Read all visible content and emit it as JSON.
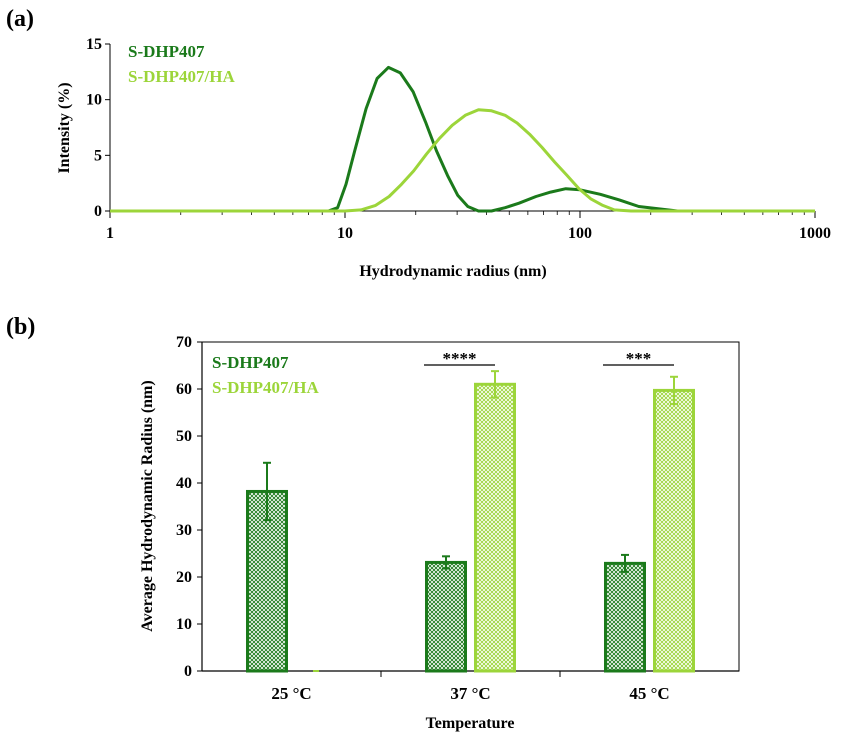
{
  "panels": {
    "a_label": "(a)",
    "b_label": "(b)"
  },
  "colors": {
    "dark": "#1b7a1b",
    "light": "#9cd53a"
  },
  "chart_data": [
    {
      "type": "line",
      "x_scale": "log",
      "title": "",
      "xlabel": "Hydrodynamic radius (nm)",
      "ylabel": "Intensity (%)",
      "xlim": [
        1,
        1000
      ],
      "ylim": [
        0,
        15
      ],
      "x_ticks": [
        1,
        10,
        100,
        1000
      ],
      "x_tick_labels": [
        "1",
        "10",
        "100",
        "1000"
      ],
      "y_ticks": [
        0,
        5,
        10,
        15
      ],
      "y_tick_labels": [
        "0",
        "5",
        "10",
        "15"
      ],
      "legend": [
        "S-DHP407",
        "S-DHP407/HA"
      ],
      "series": [
        {
          "name": "S-DHP407",
          "points": [
            [
              1,
              0
            ],
            [
              3,
              0
            ],
            [
              6,
              0
            ],
            [
              8.5,
              0
            ],
            [
              9.3,
              0.3
            ],
            [
              10.1,
              2.4
            ],
            [
              11,
              5.4
            ],
            [
              12.3,
              9.2
            ],
            [
              13.7,
              11.9
            ],
            [
              15.3,
              12.9
            ],
            [
              17.2,
              12.4
            ],
            [
              19.5,
              10.7
            ],
            [
              22,
              8
            ],
            [
              24.5,
              5.4
            ],
            [
              27.3,
              3.2
            ],
            [
              30.2,
              1.4
            ],
            [
              33.3,
              0.4
            ],
            [
              37,
              0
            ],
            [
              42,
              0
            ],
            [
              48,
              0.3
            ],
            [
              55,
              0.7
            ],
            [
              65,
              1.3
            ],
            [
              75,
              1.7
            ],
            [
              87,
              2
            ],
            [
              100,
              1.9
            ],
            [
              122,
              1.5
            ],
            [
              147,
              1
            ],
            [
              178,
              0.4
            ],
            [
              215,
              0.2
            ],
            [
              260,
              0
            ],
            [
              350,
              0
            ],
            [
              600,
              0
            ],
            [
              1000,
              0
            ]
          ]
        },
        {
          "name": "S-DHP407/HA",
          "points": [
            [
              1,
              0
            ],
            [
              5,
              0
            ],
            [
              10,
              0
            ],
            [
              11.7,
              0.1
            ],
            [
              13.5,
              0.5
            ],
            [
              15.4,
              1.3
            ],
            [
              17.4,
              2.4
            ],
            [
              19.6,
              3.6
            ],
            [
              22.2,
              5.1
            ],
            [
              25.2,
              6.5
            ],
            [
              28.6,
              7.7
            ],
            [
              32.5,
              8.6
            ],
            [
              37,
              9.1
            ],
            [
              42,
              9
            ],
            [
              48,
              8.6
            ],
            [
              54,
              7.9
            ],
            [
              61,
              6.9
            ],
            [
              69,
              5.7
            ],
            [
              78,
              4.4
            ],
            [
              88,
              3.2
            ],
            [
              99,
              2
            ],
            [
              111,
              1.1
            ],
            [
              125,
              0.5
            ],
            [
              140,
              0.1
            ],
            [
              165,
              0
            ],
            [
              300,
              0
            ],
            [
              1000,
              0
            ]
          ]
        }
      ]
    },
    {
      "type": "bar",
      "title": "",
      "xlabel": "Temperature",
      "ylabel": "Average Hydrodynamic Radius (nm)",
      "ylim": [
        0,
        70
      ],
      "y_ticks": [
        0,
        10,
        20,
        30,
        40,
        50,
        60,
        70
      ],
      "y_tick_labels": [
        "0",
        "10",
        "20",
        "30",
        "40",
        "50",
        "60",
        "70"
      ],
      "categories": [
        "25 °C",
        "37 °C",
        "45 °C"
      ],
      "legend": [
        "S-DHP407",
        "S-DHP407/HA"
      ],
      "series": [
        {
          "name": "S-DHP407",
          "values": [
            38.2,
            23.1,
            22.9
          ],
          "errors": [
            6.1,
            1.3,
            1.8
          ]
        },
        {
          "name": "S-DHP407/HA",
          "values": [
            0,
            61.0,
            59.7
          ],
          "errors": [
            0,
            2.8,
            2.9
          ]
        }
      ],
      "significance": [
        {
          "category": "37 °C",
          "label": "****"
        },
        {
          "category": "45 °C",
          "label": "***"
        }
      ]
    }
  ]
}
